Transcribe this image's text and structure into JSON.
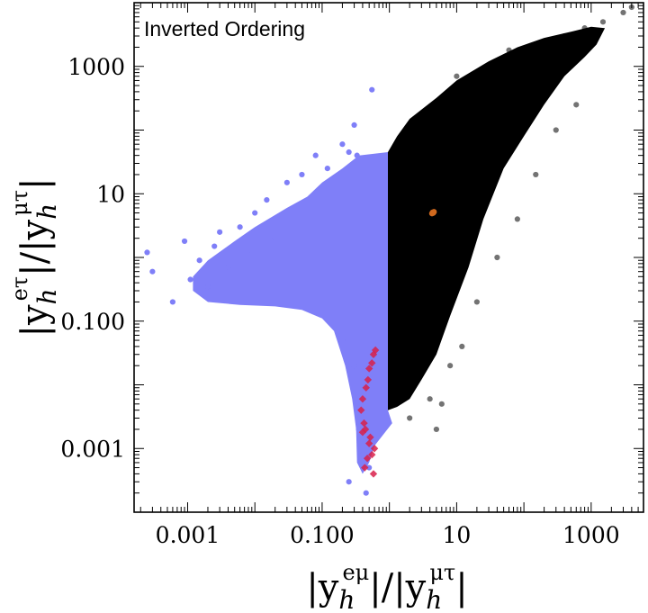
{
  "chart_data": {
    "type": "scatter",
    "title": "Inverted Ordering",
    "x_scale": "log",
    "y_scale": "log",
    "xlim": [
      0.00016,
      6000
    ],
    "ylim": [
      0.0001,
      10000
    ],
    "x_ticks": [
      {
        "value": 0.001,
        "label": "0.001"
      },
      {
        "value": 0.1,
        "label": "0.100"
      },
      {
        "value": 10,
        "label": "10"
      },
      {
        "value": 1000,
        "label": "1000"
      }
    ],
    "y_ticks": [
      {
        "value": 0.001,
        "label": "0.001"
      },
      {
        "value": 0.1,
        "label": "0.100"
      },
      {
        "value": 10,
        "label": "10"
      },
      {
        "value": 1000,
        "label": "1000"
      }
    ],
    "xlabel": {
      "pre": "|y",
      "sub": "h",
      "sup": "eμ",
      "mid": "|/|y",
      "sub2": "h",
      "sup2": "μτ",
      "post": "|"
    },
    "ylabel": {
      "pre": "|y",
      "sub": "h",
      "sup": "eτ",
      "mid": "|/|y",
      "sub2": "h",
      "sup2": "μτ",
      "post": "|"
    },
    "series": [
      {
        "color": "#7f7ff8",
        "style": "dense-region-blue",
        "points": [
          [
            0.00025,
            1.2
          ],
          [
            0.0003,
            0.6
          ],
          [
            0.0006,
            0.2
          ],
          [
            0.0009,
            1.8
          ],
          [
            0.0011,
            0.45
          ],
          [
            0.0015,
            0.9
          ],
          [
            0.002,
            0.35
          ],
          [
            0.0025,
            1.5
          ],
          [
            0.003,
            2.5
          ],
          [
            0.004,
            0.7
          ],
          [
            0.006,
            3
          ],
          [
            0.008,
            1.3
          ],
          [
            0.01,
            5
          ],
          [
            0.015,
            8
          ],
          [
            0.02,
            2
          ],
          [
            0.03,
            15
          ],
          [
            0.05,
            20
          ],
          [
            0.08,
            40
          ],
          [
            0.12,
            25
          ],
          [
            0.2,
            60
          ],
          [
            0.25,
            45
          ],
          [
            0.3,
            120
          ],
          [
            0.33,
            40
          ],
          [
            0.55,
            430
          ],
          [
            0.2,
            0.05
          ],
          [
            0.3,
            0.02
          ],
          [
            0.35,
            0.002
          ],
          [
            0.4,
            0.0008
          ],
          [
            0.25,
            0.0003
          ],
          [
            0.5,
            0.0005
          ],
          [
            0.45,
            0.0002
          ]
        ]
      },
      {
        "color": "#000000",
        "style": "dense-region-black",
        "points": [
          [
            1.1,
            15
          ],
          [
            1.3,
            60
          ],
          [
            2,
            90
          ],
          [
            3,
            150
          ],
          [
            6,
            300
          ],
          [
            10,
            700
          ],
          [
            20,
            600
          ],
          [
            30,
            900
          ],
          [
            60,
            1800
          ],
          [
            100,
            1500
          ],
          [
            200,
            2500
          ],
          [
            400,
            3000
          ],
          [
            800,
            4000
          ],
          [
            1500,
            5000
          ],
          [
            3000,
            7000
          ],
          [
            4000,
            8500
          ],
          [
            3,
            0.02
          ],
          [
            4,
            0.006
          ],
          [
            5,
            0.002
          ],
          [
            2,
            0.003
          ],
          [
            6,
            0.005
          ],
          [
            8,
            0.02
          ],
          [
            12,
            0.04
          ],
          [
            20,
            0.2
          ],
          [
            40,
            1
          ],
          [
            80,
            4
          ],
          [
            150,
            20
          ],
          [
            300,
            100
          ],
          [
            600,
            250
          ]
        ]
      },
      {
        "color": "#d8204a",
        "style": "diamond",
        "points": [
          [
            0.62,
            0.035
          ],
          [
            0.58,
            0.03
          ],
          [
            0.55,
            0.022
          ],
          [
            0.5,
            0.018
          ],
          [
            0.48,
            0.012
          ],
          [
            0.45,
            0.009
          ],
          [
            0.4,
            0.006
          ],
          [
            0.38,
            0.004
          ],
          [
            0.42,
            0.0025
          ],
          [
            0.44,
            0.002
          ],
          [
            0.5,
            0.0012
          ],
          [
            0.4,
            0.0018
          ],
          [
            0.55,
            0.0008
          ],
          [
            0.52,
            0.0015
          ],
          [
            0.6,
            0.001
          ],
          [
            0.47,
            0.0007
          ],
          [
            0.43,
            0.0005
          ],
          [
            0.58,
            0.0004
          ]
        ]
      },
      {
        "color": "#d0691e",
        "style": "cluster",
        "points": [
          [
            4.5,
            5
          ],
          [
            4.3,
            4.9
          ],
          [
            4.6,
            5.2
          ],
          [
            4.4,
            5.1
          ]
        ]
      }
    ]
  }
}
